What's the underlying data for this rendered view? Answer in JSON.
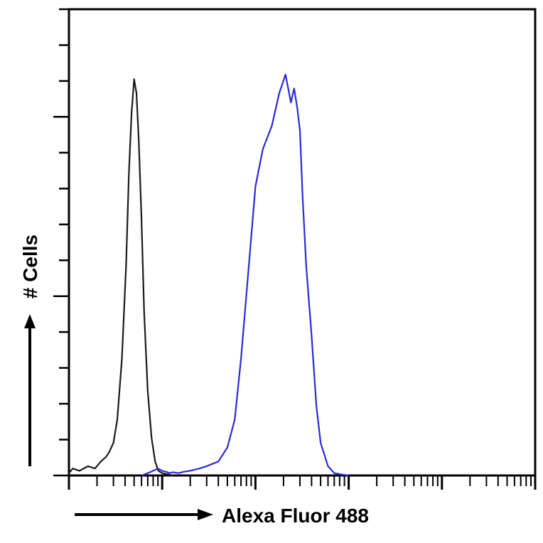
{
  "chart_data": {
    "type": "line",
    "title": "",
    "xlabel": "Alexa Fluor 488",
    "ylabel": "# Cells",
    "x_scale": "log",
    "xlim": [
      1,
      100000
    ],
    "ylim": [
      0,
      100
    ],
    "grid": false,
    "legend": "none",
    "series": [
      {
        "color": "#1a1a1a",
        "x": [
          1,
          1.1,
          1.3,
          1.6,
          1.9,
          2.2,
          2.5,
          2.7,
          3.0,
          3.3,
          3.7,
          4.1,
          4.4,
          4.7,
          5.0,
          5.3,
          5.6,
          6.0,
          6.4,
          7.0,
          7.7,
          8.4,
          9.1,
          10,
          11,
          13
        ],
        "y": [
          0.5,
          1.5,
          1,
          2,
          1.5,
          3,
          4,
          5,
          7,
          12,
          25,
          45,
          65,
          78,
          85,
          82,
          72,
          55,
          35,
          18,
          8,
          3,
          1,
          0.5,
          0.3,
          0
        ]
      },
      {
        "color": "#2a2ad8",
        "x": [
          6,
          7,
          8,
          9,
          10,
          11,
          12,
          13,
          15,
          17,
          20,
          25,
          30,
          40,
          50,
          60,
          70,
          85,
          100,
          120,
          150,
          180,
          210,
          240,
          260,
          280,
          300,
          320,
          350,
          400,
          450,
          500,
          600,
          700,
          850,
          1000
        ],
        "y": [
          0,
          0.5,
          1,
          1.5,
          1,
          0.8,
          0.5,
          0.7,
          0.5,
          0.8,
          1,
          1.5,
          2,
          3,
          6,
          12,
          25,
          45,
          62,
          70,
          75,
          82,
          86,
          80,
          83,
          79,
          74,
          60,
          45,
          30,
          15,
          7,
          2,
          0.5,
          0.2,
          0
        ]
      }
    ]
  }
}
